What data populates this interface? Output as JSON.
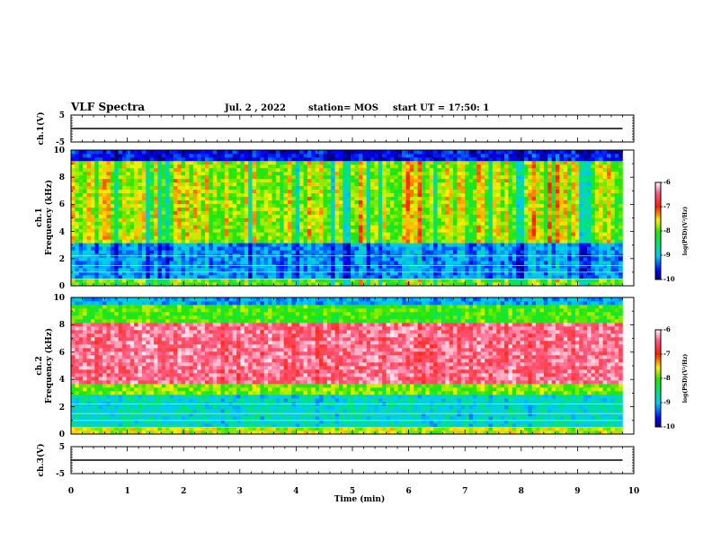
{
  "header": {
    "title": "VLF Spectra",
    "date": "Jul. 2 , 2022",
    "station": "station= MOS",
    "start": "start UT = 17:50: 1"
  },
  "chart_data": [
    {
      "type": "line",
      "title": "",
      "ylabel": "ch.1(V)",
      "xlim": [
        0,
        10
      ],
      "ylim": [
        -5,
        5
      ],
      "yticks": [
        "5",
        "-5"
      ],
      "series": [
        {
          "x": [
            0,
            9.8
          ],
          "values": [
            0,
            0
          ]
        }
      ]
    },
    {
      "type": "heatmap",
      "ylabel_lines": [
        "ch.1",
        "Frequency (kHz)"
      ],
      "xlim": [
        0,
        10
      ],
      "data_xmax": 9.8,
      "ylim": [
        0,
        10
      ],
      "yticks": [
        "0",
        "2",
        "4",
        "6",
        "8",
        "10"
      ],
      "colorbar": {
        "label": "log(PSD)(V²/Hz)",
        "ticks": [
          "-6",
          "-7",
          "-8",
          "-9",
          "-10"
        ],
        "range": [
          -10,
          -6
        ]
      },
      "lines_khz": [
        0.5,
        1.0,
        1.5,
        2.2
      ]
    },
    {
      "type": "heatmap",
      "ylabel_lines": [
        "ch.2",
        "Frequency (kHz)"
      ],
      "xlim": [
        0,
        10
      ],
      "data_xmax": 9.8,
      "ylim": [
        0,
        10
      ],
      "yticks": [
        "0",
        "2",
        "4",
        "6",
        "8",
        "10"
      ],
      "colorbar": {
        "label": "log(PSD)(V²/Hz)",
        "ticks": [
          "-6",
          "-7",
          "-8",
          "-9",
          "-10"
        ],
        "range": [
          -10,
          -6
        ]
      },
      "lines_khz": [
        0.5,
        1.0,
        1.5,
        2.2
      ]
    },
    {
      "type": "line",
      "title": "",
      "ylabel": "ch.3(V)",
      "xlim": [
        0,
        10
      ],
      "ylim": [
        -5,
        5
      ],
      "yticks": [
        "5",
        "-5"
      ],
      "series": [
        {
          "x": [
            0,
            9.8
          ],
          "values": [
            0,
            0
          ]
        }
      ]
    }
  ],
  "xaxis": {
    "label": "Time (min)",
    "ticks": [
      "0",
      "1",
      "2",
      "3",
      "4",
      "5",
      "6",
      "7",
      "8",
      "9",
      "10"
    ]
  }
}
